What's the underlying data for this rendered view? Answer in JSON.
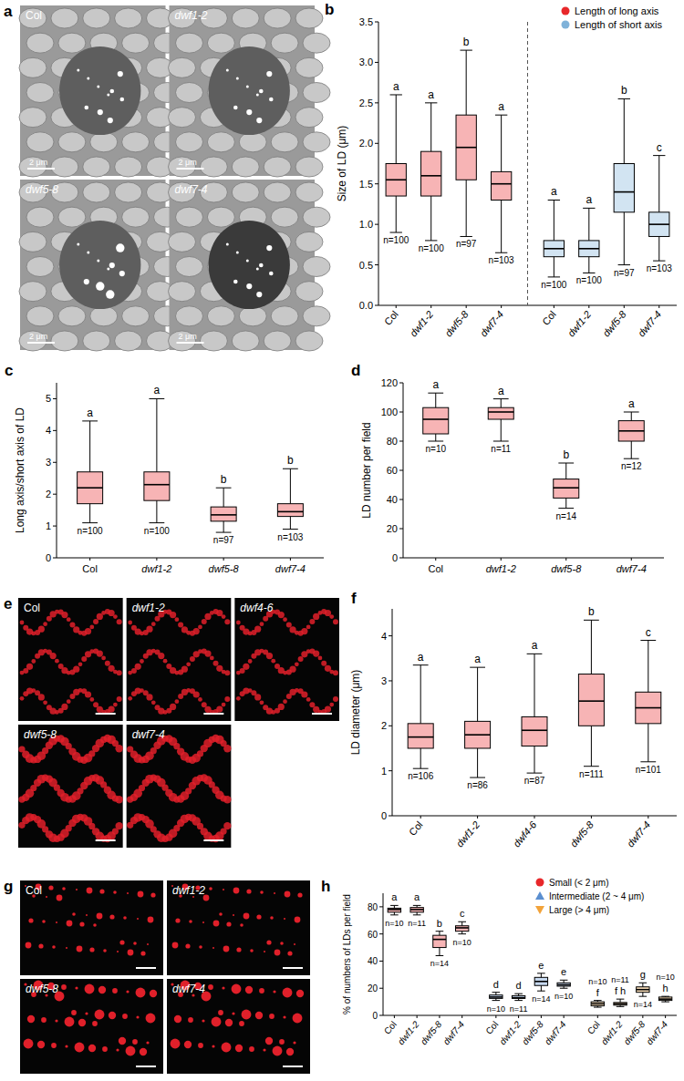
{
  "chart_data": [
    {
      "type": "box",
      "panel_label": "b",
      "ylabel": "Size of LD (μm)",
      "categories": [
        "Col",
        "dwf1-2",
        "dwf5-8",
        "dwf7-4"
      ],
      "ylim": [
        0,
        3.5
      ],
      "yticks": [
        {
          "value": 0,
          "label": "0.0"
        },
        {
          "value": 0.5,
          "label": "0.5"
        },
        {
          "value": 1,
          "label": "1.0"
        },
        {
          "value": 1.5,
          "label": "1.5"
        },
        {
          "value": 2,
          "label": "2.0"
        },
        {
          "value": 2.5,
          "label": "2.5"
        },
        {
          "value": 3,
          "label": "3.0"
        },
        {
          "value": 3.5,
          "label": "3.5"
        }
      ],
      "legend": "top-right",
      "series": [
        {
          "name": "Length of long axis",
          "color": "#e8272a",
          "marker": "circle",
          "values": [
            {
              "min": 0.9,
              "q1": 1.35,
              "median": 1.55,
              "q3": 1.75,
              "max": 2.6
            },
            {
              "min": 0.8,
              "q1": 1.35,
              "median": 1.6,
              "q3": 1.9,
              "max": 2.5
            },
            {
              "min": 0.85,
              "q1": 1.55,
              "median": 1.95,
              "q3": 2.35,
              "max": 3.15
            },
            {
              "min": 0.65,
              "q1": 1.3,
              "median": 1.5,
              "q3": 1.65,
              "max": 2.35
            }
          ],
          "n": [
            "n=100",
            "n=100",
            "n=97",
            "n=103"
          ],
          "letters": [
            "a",
            "a",
            "b",
            "a"
          ]
        },
        {
          "name": "Length of short axis",
          "color": "#7fb2d9",
          "marker": "circle",
          "values": [
            {
              "min": 0.35,
              "q1": 0.6,
              "median": 0.7,
              "q3": 0.8,
              "max": 1.3
            },
            {
              "min": 0.4,
              "q1": 0.6,
              "median": 0.7,
              "q3": 0.8,
              "max": 1.2
            },
            {
              "min": 0.5,
              "q1": 1.15,
              "median": 1.4,
              "q3": 1.75,
              "max": 2.55
            },
            {
              "min": 0.55,
              "q1": 0.85,
              "median": 1.0,
              "q3": 1.15,
              "max": 1.85
            }
          ],
          "n": [
            "n=100",
            "n=100",
            "n=97",
            "n=103"
          ],
          "letters": [
            "a",
            "a",
            "b",
            "c"
          ]
        }
      ]
    },
    {
      "type": "box",
      "panel_label": "c",
      "ylabel": "Long axis/short axis of LD",
      "categories": [
        "Col",
        "dwf1-2",
        "dwf5-8",
        "dwf7-4"
      ],
      "ylim": [
        0,
        5.5
      ],
      "yticks": [
        0,
        1,
        2,
        3,
        4,
        5
      ],
      "series": [
        {
          "color": "#e8272a",
          "values": [
            {
              "min": 1.1,
              "q1": 1.7,
              "median": 2.2,
              "q3": 2.7,
              "max": 4.3
            },
            {
              "min": 1.1,
              "q1": 1.8,
              "median": 2.3,
              "q3": 2.7,
              "max": 5.0
            },
            {
              "min": 0.8,
              "q1": 1.15,
              "median": 1.35,
              "q3": 1.6,
              "max": 2.2
            },
            {
              "min": 0.9,
              "q1": 1.3,
              "median": 1.45,
              "q3": 1.7,
              "max": 2.8
            }
          ],
          "n": [
            "n=100",
            "n=100",
            "n=97",
            "n=103"
          ],
          "letters": [
            "a",
            "a",
            "b",
            "b"
          ]
        }
      ]
    },
    {
      "type": "box",
      "panel_label": "d",
      "ylabel": "LD number per field",
      "categories": [
        "Col",
        "dwf1-2",
        "dwf5-8",
        "dwf7-4"
      ],
      "ylim": [
        0,
        120
      ],
      "yticks": [
        0,
        20,
        40,
        60,
        80,
        100,
        120
      ],
      "series": [
        {
          "color": "#e8272a",
          "values": [
            {
              "min": 80,
              "q1": 85,
              "median": 95,
              "q3": 103,
              "max": 113
            },
            {
              "min": 80,
              "q1": 95,
              "median": 100,
              "q3": 103,
              "max": 109
            },
            {
              "min": 34,
              "q1": 41,
              "median": 48,
              "q3": 54,
              "max": 65
            },
            {
              "min": 68,
              "q1": 80,
              "median": 87,
              "q3": 94,
              "max": 100
            }
          ],
          "n": [
            "n=10",
            "n=11",
            "n=14",
            "n=12"
          ],
          "letters": [
            "a",
            "a",
            "b",
            "a"
          ]
        }
      ]
    },
    {
      "type": "box",
      "panel_label": "f",
      "ylabel": "LD diameter (μm)",
      "categories": [
        "Col",
        "dwf1-2",
        "dwf4-6",
        "dwf5-8",
        "dwf7-4"
      ],
      "ylim": [
        0,
        4.6
      ],
      "yticks": [
        0,
        1,
        2,
        3,
        4
      ],
      "series": [
        {
          "color": "#e8272a",
          "values": [
            {
              "min": 1.05,
              "q1": 1.5,
              "median": 1.75,
              "q3": 2.05,
              "max": 3.35
            },
            {
              "min": 0.85,
              "q1": 1.5,
              "median": 1.8,
              "q3": 2.1,
              "max": 3.3
            },
            {
              "min": 0.95,
              "q1": 1.55,
              "median": 1.9,
              "q3": 2.2,
              "max": 3.6
            },
            {
              "min": 1.1,
              "q1": 2.0,
              "median": 2.55,
              "q3": 3.15,
              "max": 4.35
            },
            {
              "min": 1.2,
              "q1": 2.05,
              "median": 2.4,
              "q3": 2.75,
              "max": 3.9
            }
          ],
          "n": [
            "n=106",
            "n=86",
            "n=87",
            "n=111",
            "n=101"
          ],
          "letters": [
            "a",
            "a",
            "a",
            "b",
            "c"
          ]
        }
      ]
    },
    {
      "type": "box",
      "panel_label": "h",
      "ylabel": "% of numbers of LDs per field",
      "categories": [
        "Col",
        "dwf1-2",
        "dwf5-8",
        "dwf7-4"
      ],
      "ylim": [
        0,
        90
      ],
      "yticks": [
        0,
        20,
        40,
        60,
        80
      ],
      "legend": "top-right",
      "series": [
        {
          "name": "Small (< 2 μm)",
          "color": "#e8272a",
          "marker": "circle",
          "values": [
            {
              "min": 74,
              "q1": 76,
              "median": 78,
              "q3": 79,
              "max": 81
            },
            {
              "min": 74,
              "q1": 76,
              "median": 78,
              "q3": 79.5,
              "max": 81
            },
            {
              "min": 44,
              "q1": 50,
              "median": 56,
              "q3": 59,
              "max": 62
            },
            {
              "min": 60,
              "q1": 62,
              "median": 64.5,
              "q3": 66,
              "max": 69
            }
          ],
          "n": [
            "n=10",
            "n=11",
            "n=14",
            "n=10"
          ],
          "letters": [
            "a",
            "a",
            "b",
            "c"
          ]
        },
        {
          "name": "Intermediate (2 ~ 4 μm)",
          "color": "#5b8fd0",
          "marker": "triangle",
          "values": [
            {
              "min": 11,
              "q1": 12.5,
              "median": 13.5,
              "q3": 15,
              "max": 17
            },
            {
              "min": 11,
              "q1": 12.5,
              "median": 13,
              "q3": 14.5,
              "max": 16
            },
            {
              "min": 18,
              "q1": 22,
              "median": 25,
              "q3": 28,
              "max": 31
            },
            {
              "min": 20,
              "q1": 21.5,
              "median": 22.5,
              "q3": 24,
              "max": 26
            }
          ],
          "n": [
            "n=10",
            "n=11",
            "n=14",
            "n=10"
          ],
          "letters": [
            "d",
            "d",
            "e",
            "e"
          ]
        },
        {
          "name": "Large (> 4 μm)",
          "color": "#f2a33a",
          "marker": "triangle-down",
          "values": [
            {
              "min": 6,
              "q1": 7,
              "median": 8.5,
              "q3": 10,
              "max": 11
            },
            {
              "min": 6.5,
              "q1": 7.5,
              "median": 8.5,
              "q3": 9.5,
              "max": 12
            },
            {
              "min": 14,
              "q1": 17,
              "median": 19,
              "q3": 21,
              "max": 24
            },
            {
              "min": 10,
              "q1": 11,
              "median": 12,
              "q3": 13.5,
              "max": 14
            }
          ],
          "n": [
            "n=10",
            "n=11",
            "n=14",
            "n=10"
          ],
          "letters": [
            "f",
            "f h",
            "g",
            "h"
          ]
        }
      ]
    }
  ],
  "images": [
    {
      "panel_label": "a",
      "labels": [
        "Col",
        "dwf1-2",
        "dwf5-8",
        "dwf7-4"
      ],
      "scale_bar": "2 μm"
    },
    {
      "panel_label": "e",
      "labels": [
        "Col",
        "dwf1-2",
        "dwf4-6",
        "dwf5-8",
        "dwf7-4"
      ]
    },
    {
      "panel_label": "g",
      "labels": [
        "Col",
        "dwf1-2",
        "dwf5-8",
        "dwf7-4"
      ]
    }
  ]
}
